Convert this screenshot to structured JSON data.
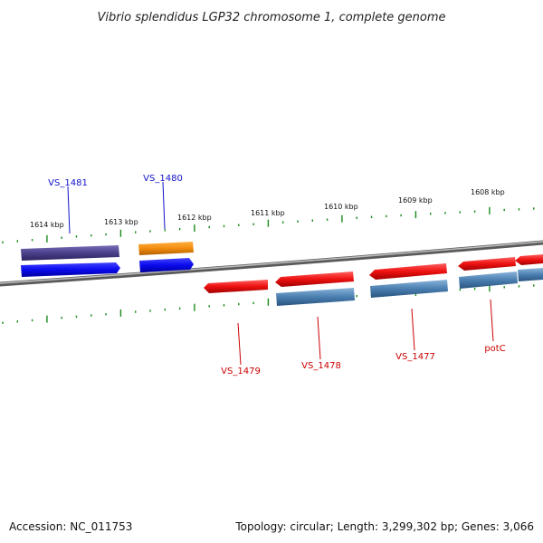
{
  "title": "Vibrio splendidus LGP32 chromosome 1, complete genome",
  "footer": {
    "accession": "Accession: NC_011753",
    "summary": "Topology: circular; Length: 3,299,302 bp; Genes: 3,066"
  },
  "colors": {
    "backbone": "#888888",
    "ticks": "#1a8a1a",
    "forward_label": "#1010cc",
    "reverse_label": "#cc0000",
    "gene_forward": "#0a0aee",
    "gene_forward_dark": "#4a3f8a",
    "gene_orange": "#f28c0f",
    "gene_reverse": "#ee1111",
    "gene_steel": "#4a7fb0"
  },
  "kbp_labels": [
    "1614 kbp",
    "1613 kbp",
    "1612 kbp",
    "1611 kbp",
    "1610 kbp",
    "1609 kbp",
    "1608 kbp"
  ],
  "gene_labels": {
    "vs1481": "VS_1481",
    "vs1480": "VS_1480",
    "vs1479": "VS_1479",
    "vs1478": "VS_1478",
    "vs1477": "VS_1477",
    "potc": "potC"
  }
}
